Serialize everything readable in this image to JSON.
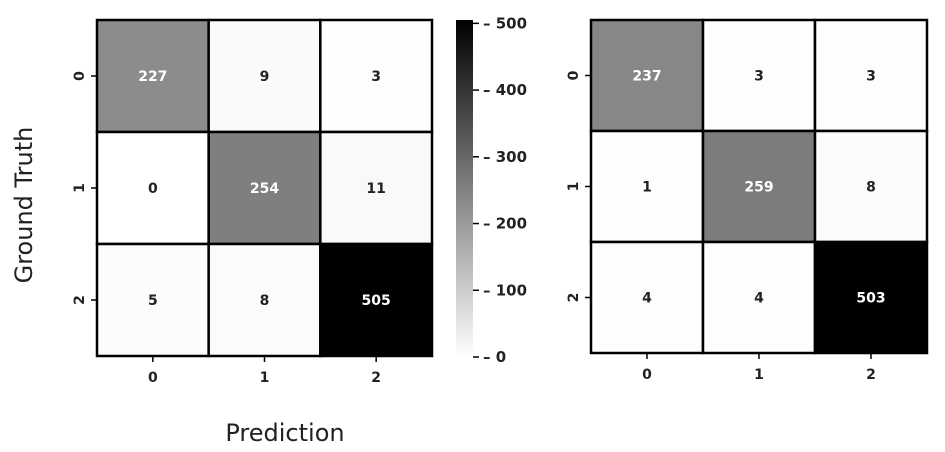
{
  "figure": {
    "xlabel": "Prediction",
    "ylabel": "Ground Truth"
  },
  "colorbar": {
    "min": 0,
    "max": 505,
    "ticks": [
      0,
      100,
      200,
      300,
      400,
      500
    ],
    "colormap": [
      "#ffffff",
      "#000000"
    ]
  },
  "chart_data": [
    {
      "type": "heatmap",
      "x_categories": [
        "0",
        "1",
        "2"
      ],
      "y_categories": [
        "0",
        "1",
        "2"
      ],
      "values": [
        [
          227,
          9,
          3
        ],
        [
          0,
          254,
          11
        ],
        [
          5,
          8,
          505
        ]
      ],
      "color_range": [
        0,
        505
      ]
    },
    {
      "type": "heatmap",
      "x_categories": [
        "0",
        "1",
        "2"
      ],
      "y_categories": [
        "0",
        "1",
        "2"
      ],
      "values": [
        [
          237,
          3,
          3
        ],
        [
          1,
          259,
          8
        ],
        [
          4,
          4,
          503
        ]
      ],
      "color_range": [
        0,
        505
      ]
    }
  ]
}
